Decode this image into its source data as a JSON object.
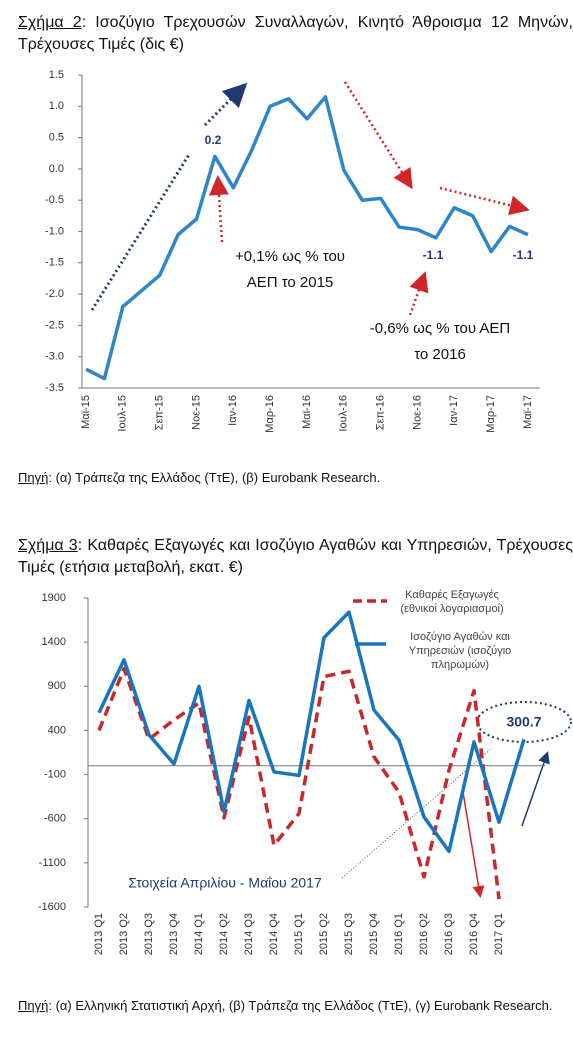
{
  "chart_data": [
    {
      "type": "line",
      "figure_label": "Σχήμα 2",
      "title": ": Ισοζύγιο Τρεχουσών Συναλλαγών, Κινητό Άθροισμα 12 Μηνών, Τρέχουσες Τιμές (δις €)",
      "categories": [
        "Μαϊ-15",
        null,
        "Ιουλ-15",
        null,
        "Σεπ-15",
        null,
        "Νοε-15",
        null,
        "Ιαν-16",
        null,
        "Μαρ-16",
        null,
        "Μαϊ-16",
        null,
        "Ιουλ-16",
        null,
        "Σεπ-16",
        null,
        "Νοε-16",
        null,
        "Ιαν-17",
        null,
        "Μαρ-17",
        null,
        "Μαϊ-17"
      ],
      "series": [
        {
          "color": "#2e86c8",
          "values": [
            -3.2,
            -3.35,
            -2.2,
            -1.95,
            -1.7,
            -1.05,
            -0.8,
            0.2,
            -0.3,
            0.3,
            1.0,
            1.12,
            0.8,
            1.15,
            -0.02,
            -0.5,
            -0.47,
            -0.93,
            -0.97,
            -1.1,
            -0.62,
            -0.75,
            -1.32,
            -0.92,
            -1.05
          ]
        }
      ],
      "ylim": [
        -3.5,
        1.5
      ],
      "yticks": [
        1.5,
        {
          "value": 1.0,
          "label": "1.0"
        },
        0.5,
        {
          "value": 0,
          "label": "0.0"
        },
        -0.5,
        {
          "value": -1.0,
          "label": "-1.0"
        },
        -1.5,
        {
          "value": -2.0,
          "label": "-2.0"
        },
        -2.5,
        {
          "value": -3.0,
          "label": "-3.0"
        },
        -3.5
      ],
      "grid": false,
      "annotations": [
        "0.2",
        "-1.1",
        "-1.1",
        "+0,1% ως % του ΑΕΠ το 2015",
        "-0,6% ως % του ΑΕΠ το 2016"
      ],
      "source_label": "Πηγή",
      "source": ": (α) Τράπεζα της Ελλάδος (ΤτΕ), (β) Eurobank Research."
    },
    {
      "type": "line",
      "figure_label": "Σχήμα 3",
      "title": ": Καθαρές Εξαγωγές και Ισοζύγιο Αγαθών και Υπηρεσιών, Τρέχουσες Τιμές (ετήσια μεταβολή, εκατ. €)",
      "categories": [
        "2013 Q1",
        "2013 Q2",
        "2013 Q3",
        "2013 Q4",
        "2014 Q1",
        "2014 Q2",
        "2014 Q3",
        "2014 Q4",
        "2015 Q1",
        "2015 Q2",
        "2015 Q3",
        "2015 Q4",
        "2016 Q1",
        "2016 Q2",
        "2016 Q3",
        "2016 Q4",
        "2017 Q1",
        null
      ],
      "series": [
        {
          "name": "Καθαρές Εξαγωγές (εθνικοί λογαριασμοί)",
          "color": "#c8282c",
          "dashed": true,
          "values": [
            400,
            1100,
            300,
            520,
            710,
            -590,
            550,
            -900,
            -540,
            1010,
            1070,
            100,
            -300,
            -1260,
            -50,
            850,
            -1510,
            null
          ]
        },
        {
          "name": "Ισοζύγιο Αγαθών και Υπηρεσιών (ισοζύγιο πληρωμών)",
          "color": "#1a75bc",
          "dashed": false,
          "values": [
            600,
            1200,
            350,
            20,
            900,
            -520,
            740,
            -70,
            -110,
            1450,
            1740,
            630,
            290,
            -580,
            -970,
            270,
            -640,
            300.7
          ]
        }
      ],
      "ylim": [
        -1600,
        1900
      ],
      "yticks": [
        1900,
        1400,
        900,
        400,
        -100,
        -600,
        -1100,
        -1600
      ],
      "grid": false,
      "legend": "top-right",
      "annotations": [
        "300.7",
        "Στοιχεία Απριλίου - Μαΐου 2017"
      ],
      "source_label": "Πηγή",
      "source": ": (α) Ελληνική Στατιστική Αρχή, (β) Τράπεζα της Ελλάδος (ΤτΕ), (γ) Eurobank Research."
    }
  ]
}
